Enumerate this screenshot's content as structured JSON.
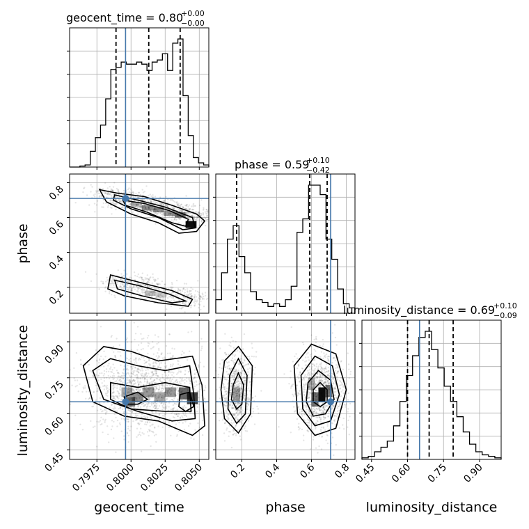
{
  "chart_data": {
    "type": "corner",
    "parameters": [
      "geocent_time",
      "phase",
      "luminosity_distance"
    ],
    "truths": {
      "geocent_time": 0.7996,
      "phase": 0.71,
      "luminosity_distance": 0.65
    },
    "titles": [
      {
        "param": "geocent_time",
        "prefix": "geocent_time = 0.80",
        "sup": "+0.00",
        "sub": "−0.00"
      },
      {
        "param": "phase",
        "prefix": "phase = 0.59",
        "sup": "+0.10",
        "sub": "−0.42"
      },
      {
        "param": "luminosity_distance",
        "prefix": "luminosity_distance = 0.69",
        "sup": "+0.10",
        "sub": "−0.09"
      }
    ],
    "axis_labels": {
      "geocent_time": "geocent_time",
      "phase": "phase",
      "luminosity_distance": "luminosity_distance"
    },
    "ranges": {
      "geocent_time": [
        0.7955,
        0.8057
      ],
      "phase": [
        0.05,
        0.85
      ],
      "luminosity_distance": [
        0.41,
        0.99
      ]
    },
    "ticks": {
      "geocent_time": {
        "values": [
          0.7975,
          0.8,
          0.8025,
          0.805
        ],
        "labels": [
          "0.7975",
          "0.8000",
          "0.8025",
          "0.8050"
        ]
      },
      "phase": {
        "values": [
          0.2,
          0.4,
          0.6,
          0.8
        ],
        "labels": [
          "0.2",
          "0.4",
          "0.6",
          "0.8"
        ]
      },
      "luminosity_distance": {
        "values": [
          0.45,
          0.6,
          0.75,
          0.9
        ],
        "labels": [
          "0.45",
          "0.60",
          "0.75",
          "0.90"
        ]
      }
    },
    "quantiles": {
      "geocent_time": [
        0.7989,
        0.8013,
        0.8036
      ],
      "phase": [
        0.17,
        0.59,
        0.69
      ],
      "luminosity_distance": [
        0.6,
        0.69,
        0.79
      ]
    },
    "histograms": {
      "geocent_time": {
        "min": 0.7955,
        "max": 0.8057,
        "counts": [
          0,
          0,
          1,
          2,
          15,
          28,
          40,
          65,
          93,
          95,
          100,
          98,
          98,
          100,
          98,
          92,
          100,
          102,
          108,
          92,
          118,
          122,
          68,
          30,
          9,
          4,
          2
        ]
      },
      "phase": {
        "min": 0.05,
        "max": 0.85,
        "counts": [
          10,
          30,
          55,
          65,
          42,
          30,
          16,
          10,
          8,
          5,
          7,
          5,
          10,
          20,
          60,
          70,
          95,
          95,
          88,
          55,
          40,
          18,
          7,
          4
        ]
      },
      "luminosity_distance": {
        "min": 0.41,
        "max": 0.99,
        "counts": [
          1,
          2,
          5,
          8,
          12,
          22,
          38,
          55,
          68,
          80,
          84,
          72,
          60,
          48,
          38,
          28,
          18,
          10,
          5,
          3,
          2,
          1
        ]
      }
    },
    "grid": true
  }
}
